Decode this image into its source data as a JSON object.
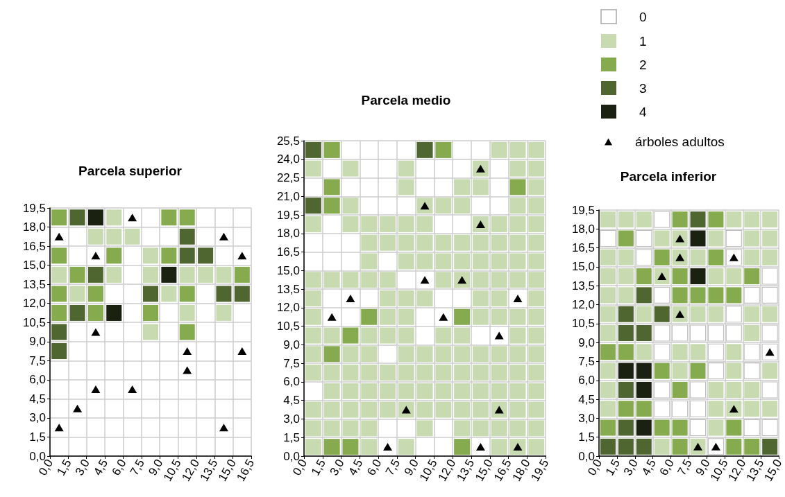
{
  "chart_data": [
    {
      "type": "scatter",
      "title": "Parcela superior",
      "xlim": [
        0,
        16.5
      ],
      "ylim": [
        0,
        19.5
      ],
      "grid": true,
      "marker": "square",
      "xticks": [
        {
          "value": 0,
          "label": "0,0"
        },
        {
          "value": 1.5,
          "label": "1,5"
        },
        {
          "value": 3,
          "label": "3,0"
        },
        {
          "value": 4.5,
          "label": "4,5"
        },
        {
          "value": 6,
          "label": "6,0"
        },
        {
          "value": 7.5,
          "label": "7,5"
        },
        {
          "value": 9,
          "label": "9,0"
        },
        {
          "value": 10.5,
          "label": "10,5"
        },
        {
          "value": 12,
          "label": "12,0"
        },
        {
          "value": 13.5,
          "label": "13,5"
        },
        {
          "value": 15,
          "label": "15,0"
        },
        {
          "value": 16.5,
          "label": "16,5"
        }
      ],
      "yticks": [
        {
          "value": 0,
          "label": "0,0"
        },
        {
          "value": 1.5,
          "label": "1,5"
        },
        {
          "value": 3,
          "label": "3,0"
        },
        {
          "value": 4.5,
          "label": "4,5"
        },
        {
          "value": 6,
          "label": "6,0"
        },
        {
          "value": 7.5,
          "label": "7,5"
        },
        {
          "value": 9,
          "label": "9,0"
        },
        {
          "value": 10.5,
          "label": "10,5"
        },
        {
          "value": 12,
          "label": "12,0"
        },
        {
          "value": 13.5,
          "label": "13,5"
        },
        {
          "value": 15,
          "label": "15,0"
        },
        {
          "value": 16.5,
          "label": "16,5"
        },
        {
          "value": 18,
          "label": "18,0"
        },
        {
          "value": 19.5,
          "label": "19,5"
        }
      ],
      "series": [
        {
          "color": "#c8dbb0",
          "x": [
            5.25,
            3.75,
            5.25,
            6.75,
            8.25,
            0.75,
            5.25,
            8.25,
            11.25,
            12.75,
            14.25,
            2.25,
            9.75,
            11.25,
            14.25,
            8.25
          ],
          "values": [
            18.75,
            17.25,
            17.25,
            17.25,
            15.75,
            14.25,
            14.25,
            14.25,
            14.25,
            14.25,
            14.25,
            12.75,
            12.75,
            11.25,
            11.25,
            9.75
          ]
        },
        {
          "color": "#86ab4f",
          "x": [
            0.75,
            9.75,
            11.25,
            0.75,
            5.25,
            9.75,
            2.25,
            15.75,
            0.75,
            3.75,
            11.25,
            0.75,
            3.75,
            8.25,
            11.25
          ],
          "values": [
            18.75,
            18.75,
            18.75,
            15.75,
            15.75,
            15.75,
            14.25,
            14.25,
            12.75,
            12.75,
            12.75,
            11.25,
            11.25,
            11.25,
            9.75
          ]
        },
        {
          "color": "#506630",
          "x": [
            2.25,
            11.25,
            11.25,
            12.75,
            3.75,
            8.25,
            14.25,
            15.75,
            2.25,
            0.75,
            0.75
          ],
          "values": [
            18.75,
            17.25,
            15.75,
            15.75,
            14.25,
            12.75,
            12.75,
            12.75,
            11.25,
            9.75,
            8.25
          ]
        },
        {
          "color": "#1a2110",
          "x": [
            3.75,
            9.75,
            5.25
          ],
          "values": [
            18.75,
            14.25,
            11.25
          ]
        },
        {
          "color": "#000000",
          "marker": "triangle",
          "x": [
            6.75,
            0.75,
            14.25,
            3.75,
            15.75,
            3.75,
            11.25,
            15.75,
            11.25,
            3.75,
            6.75,
            2.25,
            0.75,
            14.25
          ],
          "values": [
            18.75,
            17.25,
            17.25,
            15.75,
            15.75,
            9.75,
            8.25,
            8.25,
            6.75,
            5.25,
            5.25,
            3.75,
            2.25,
            2.25
          ]
        }
      ]
    },
    {
      "type": "scatter",
      "title": "Parcela medio",
      "xlim": [
        0,
        19.5
      ],
      "ylim": [
        0,
        25.5
      ],
      "grid": true,
      "marker": "square",
      "xticks": [
        {
          "value": 0,
          "label": "0,0"
        },
        {
          "value": 1.5,
          "label": "1,5"
        },
        {
          "value": 3,
          "label": "3,0"
        },
        {
          "value": 4.5,
          "label": "4,5"
        },
        {
          "value": 6,
          "label": "6,0"
        },
        {
          "value": 7.5,
          "label": "7,5"
        },
        {
          "value": 9,
          "label": "9,0"
        },
        {
          "value": 10.5,
          "label": "10,5"
        },
        {
          "value": 12,
          "label": "12,0"
        },
        {
          "value": 13.5,
          "label": "13,5"
        },
        {
          "value": 15,
          "label": "15,0"
        },
        {
          "value": 16.5,
          "label": "16,5"
        },
        {
          "value": 18,
          "label": "18,0"
        },
        {
          "value": 19.5,
          "label": "19,5"
        }
      ],
      "yticks": [
        {
          "value": 0,
          "label": "0,0"
        },
        {
          "value": 1.5,
          "label": "1,5"
        },
        {
          "value": 3,
          "label": "3,0"
        },
        {
          "value": 4.5,
          "label": "4,5"
        },
        {
          "value": 6,
          "label": "6,0"
        },
        {
          "value": 7.5,
          "label": "7,5"
        },
        {
          "value": 9,
          "label": "9,0"
        },
        {
          "value": 10.5,
          "label": "10,5"
        },
        {
          "value": 12,
          "label": "12,0"
        },
        {
          "value": 13.5,
          "label": "13,5"
        },
        {
          "value": 15,
          "label": "15,0"
        },
        {
          "value": 16.5,
          "label": "16,5"
        },
        {
          "value": 18,
          "label": "18,0"
        },
        {
          "value": 19.5,
          "label": "19,5"
        },
        {
          "value": 21,
          "label": "21,0"
        },
        {
          "value": 22.5,
          "label": "22,5"
        },
        {
          "value": 24,
          "label": "24,0"
        },
        {
          "value": 25.5,
          "label": "25,5"
        }
      ],
      "series": [
        {
          "color": "#c8dbb0",
          "x": [
            15.75,
            17.25,
            18.75,
            0.75,
            3.75,
            8.25,
            14.25,
            17.25,
            18.75,
            8.25,
            12.75,
            14.25,
            18.75,
            3.75,
            9.75,
            11.25,
            12.75,
            17.25,
            18.75,
            0.75,
            3.75,
            5.25,
            6.75,
            8.25,
            9.75,
            14.25,
            15.75,
            17.25,
            18.75,
            5.25,
            6.75,
            8.25,
            9.75,
            11.25,
            12.75,
            14.25,
            15.75,
            17.25,
            18.75,
            5.25,
            8.25,
            9.75,
            11.25,
            12.75,
            14.25,
            15.75,
            17.25,
            18.75,
            0.75,
            2.25,
            3.75,
            5.25,
            6.75,
            11.25,
            12.75,
            14.25,
            15.75,
            17.25,
            18.75,
            0.75,
            6.75,
            8.25,
            9.75,
            14.25,
            15.75,
            18.75,
            0.75,
            6.75,
            8.25,
            14.25,
            15.75,
            17.25,
            18.75,
            0.75,
            2.25,
            5.25,
            6.75,
            8.25,
            11.25,
            12.75,
            17.25,
            18.75,
            0.75,
            3.75,
            5.25,
            8.25,
            9.75,
            11.25,
            12.75,
            14.25,
            15.75,
            17.25,
            18.75,
            0.75,
            2.25,
            3.75,
            5.25,
            6.75,
            8.25,
            9.75,
            11.25,
            12.75,
            14.25,
            15.75,
            17.25,
            18.75,
            2.25,
            3.75,
            5.25,
            6.75,
            8.25,
            9.75,
            11.25,
            12.75,
            14.25,
            15.75,
            17.25,
            18.75,
            0.75,
            2.25,
            3.75,
            5.25,
            6.75,
            8.25,
            9.75,
            11.25,
            12.75,
            14.25,
            15.75,
            17.25,
            18.75,
            0.75,
            2.25,
            3.75,
            5.25,
            9.75,
            12.75,
            14.25,
            15.75,
            17.25,
            18.75,
            0.75,
            5.25,
            8.25,
            15.75,
            17.25,
            18.75
          ],
          "values": [
            24.75,
            24.75,
            24.75,
            23.25,
            23.25,
            23.25,
            23.25,
            23.25,
            23.25,
            21.75,
            21.75,
            21.75,
            21.75,
            20.25,
            20.25,
            20.25,
            20.25,
            20.25,
            20.25,
            18.75,
            18.75,
            18.75,
            18.75,
            18.75,
            18.75,
            18.75,
            18.75,
            18.75,
            18.75,
            17.25,
            17.25,
            17.25,
            17.25,
            17.25,
            17.25,
            17.25,
            17.25,
            17.25,
            17.25,
            15.75,
            15.75,
            15.75,
            15.75,
            15.75,
            15.75,
            15.75,
            15.75,
            15.75,
            14.25,
            14.25,
            14.25,
            14.25,
            14.25,
            14.25,
            14.25,
            14.25,
            14.25,
            14.25,
            14.25,
            12.75,
            12.75,
            12.75,
            12.75,
            12.75,
            12.75,
            12.75,
            11.25,
            11.25,
            11.25,
            11.25,
            11.25,
            11.25,
            11.25,
            9.75,
            9.75,
            9.75,
            9.75,
            9.75,
            9.75,
            9.75,
            9.75,
            9.75,
            8.25,
            8.25,
            8.25,
            8.25,
            8.25,
            8.25,
            8.25,
            8.25,
            8.25,
            8.25,
            8.25,
            6.75,
            6.75,
            6.75,
            6.75,
            6.75,
            6.75,
            6.75,
            6.75,
            6.75,
            6.75,
            6.75,
            6.75,
            6.75,
            5.25,
            5.25,
            5.25,
            5.25,
            5.25,
            5.25,
            5.25,
            5.25,
            5.25,
            5.25,
            5.25,
            5.25,
            3.75,
            3.75,
            3.75,
            3.75,
            3.75,
            3.75,
            3.75,
            3.75,
            3.75,
            3.75,
            3.75,
            3.75,
            3.75,
            2.25,
            2.25,
            2.25,
            2.25,
            2.25,
            2.25,
            2.25,
            2.25,
            2.25,
            2.25,
            0.75,
            0.75,
            0.75,
            0.75,
            0.75,
            0.75
          ]
        },
        {
          "color": "#86ab4f",
          "x": [
            2.25,
            11.25,
            2.25,
            17.25,
            2.25,
            5.25,
            12.75,
            3.75,
            2.25,
            2.25,
            3.75,
            12.75
          ],
          "values": [
            24.75,
            24.75,
            21.75,
            21.75,
            20.25,
            11.25,
            11.25,
            9.75,
            8.25,
            0.75,
            0.75,
            0.75
          ]
        },
        {
          "color": "#506630",
          "x": [
            0.75,
            9.75,
            0.75
          ],
          "values": [
            24.75,
            24.75,
            20.25
          ]
        },
        {
          "color": "#000000",
          "marker": "triangle",
          "x": [
            14.25,
            9.75,
            14.25,
            9.75,
            12.75,
            3.75,
            17.25,
            2.25,
            11.25,
            15.75,
            8.25,
            15.75,
            6.75,
            14.25,
            17.25
          ],
          "values": [
            23.25,
            20.25,
            18.75,
            14.25,
            14.25,
            12.75,
            12.75,
            11.25,
            11.25,
            9.75,
            3.75,
            3.75,
            0.75,
            0.75,
            0.75
          ]
        }
      ]
    },
    {
      "type": "scatter",
      "title": "Parcela inferior",
      "xlim": [
        0,
        15
      ],
      "ylim": [
        0,
        19.5
      ],
      "grid": true,
      "legend": "top left",
      "marker": "square",
      "xticks": [
        {
          "value": 0,
          "label": "0,0"
        },
        {
          "value": 1.5,
          "label": "1,5"
        },
        {
          "value": 3,
          "label": "3,0"
        },
        {
          "value": 4.5,
          "label": "4,5"
        },
        {
          "value": 6,
          "label": "6,0"
        },
        {
          "value": 7.5,
          "label": "7,5"
        },
        {
          "value": 9,
          "label": "9,0"
        },
        {
          "value": 10.5,
          "label": "10,5"
        },
        {
          "value": 12,
          "label": "12,0"
        },
        {
          "value": 13.5,
          "label": "13,5"
        },
        {
          "value": 15,
          "label": "15,0"
        }
      ],
      "yticks": [
        {
          "value": 0,
          "label": "0,0"
        },
        {
          "value": 1.5,
          "label": "1,5"
        },
        {
          "value": 3,
          "label": "3,0"
        },
        {
          "value": 4.5,
          "label": "4,5"
        },
        {
          "value": 6,
          "label": "6,0"
        },
        {
          "value": 7.5,
          "label": "7,5"
        },
        {
          "value": 9,
          "label": "9,0"
        },
        {
          "value": 10.5,
          "label": "10,5"
        },
        {
          "value": 12,
          "label": "12,0"
        },
        {
          "value": 13.5,
          "label": "13,5"
        },
        {
          "value": 15,
          "label": "15,0"
        },
        {
          "value": 16.5,
          "label": "16,5"
        },
        {
          "value": 18,
          "label": "18,0"
        },
        {
          "value": 19.5,
          "label": "19,5"
        }
      ],
      "series": [
        {
          "name": "0",
          "color": "#ffffff",
          "x": [
            5.25,
            0.75,
            3.75,
            11.25,
            3.75,
            11.25,
            14.25,
            5.25,
            12.75,
            14.25,
            11.25,
            5.25,
            6.75,
            8.25,
            9.75,
            11.25,
            14.25,
            5.25,
            9.75,
            12.75,
            14.25,
            9.75,
            12.75,
            5.25,
            8.25,
            14.25,
            5.25,
            6.75,
            8.25,
            8.25,
            12.75,
            14.25,
            9.75
          ],
          "values": [
            18.75,
            17.25,
            17.25,
            17.25,
            15.75,
            15.75,
            14.25,
            12.75,
            12.75,
            12.75,
            11.25,
            9.75,
            9.75,
            9.75,
            9.75,
            9.75,
            9.75,
            8.25,
            8.25,
            8.25,
            8.25,
            6.75,
            6.75,
            5.25,
            5.25,
            5.25,
            3.75,
            3.75,
            3.75,
            2.25,
            2.25,
            2.25,
            0.75
          ]
        },
        {
          "name": "1",
          "color": "#c8dbb0",
          "x": [
            0.75,
            2.25,
            3.75,
            11.25,
            12.75,
            14.25,
            5.25,
            6.75,
            9.75,
            12.75,
            14.25,
            0.75,
            2.25,
            6.75,
            8.25,
            12.75,
            14.25,
            0.75,
            2.25,
            5.25,
            9.75,
            11.25,
            0.75,
            2.25,
            0.75,
            3.75,
            6.75,
            8.25,
            9.75,
            12.75,
            14.25,
            0.75,
            12.75,
            3.75,
            6.75,
            8.25,
            11.25,
            0.75,
            6.75,
            11.25,
            14.25,
            0.75,
            9.75,
            11.25,
            12.75,
            0.75,
            9.75,
            11.25,
            12.75,
            14.25,
            9.75,
            5.25,
            8.25
          ],
          "values": [
            18.75,
            18.75,
            18.75,
            18.75,
            18.75,
            18.75,
            17.25,
            17.25,
            17.25,
            17.25,
            17.25,
            15.75,
            15.75,
            15.75,
            15.75,
            15.75,
            15.75,
            14.25,
            14.25,
            14.25,
            14.25,
            14.25,
            12.75,
            12.75,
            11.25,
            11.25,
            11.25,
            11.25,
            11.25,
            11.25,
            11.25,
            9.75,
            9.75,
            8.25,
            8.25,
            8.25,
            8.25,
            6.75,
            6.75,
            6.75,
            6.75,
            5.25,
            5.25,
            5.25,
            5.25,
            3.75,
            3.75,
            3.75,
            3.75,
            3.75,
            2.25,
            0.75,
            0.75
          ]
        },
        {
          "name": "2",
          "color": "#86ab4f",
          "x": [
            6.75,
            9.75,
            2.25,
            5.25,
            9.75,
            3.75,
            6.75,
            12.75,
            6.75,
            8.25,
            9.75,
            11.25,
            0.75,
            2.25,
            5.25,
            8.25,
            6.75,
            2.25,
            3.75,
            0.75,
            5.25,
            6.75,
            11.25,
            6.75,
            11.25,
            12.75
          ],
          "values": [
            18.75,
            18.75,
            17.25,
            15.75,
            15.75,
            14.25,
            14.25,
            14.25,
            12.75,
            12.75,
            12.75,
            12.75,
            8.25,
            8.25,
            6.75,
            6.75,
            5.25,
            3.75,
            3.75,
            2.25,
            2.25,
            2.25,
            2.25,
            0.75,
            0.75,
            0.75
          ]
        },
        {
          "name": "3",
          "color": "#506630",
          "x": [
            8.25,
            3.75,
            2.25,
            5.25,
            2.25,
            3.75,
            2.25,
            2.25,
            0.75,
            2.25,
            3.75,
            14.25
          ],
          "values": [
            18.75,
            12.75,
            11.25,
            11.25,
            9.75,
            9.75,
            5.25,
            2.25,
            0.75,
            0.75,
            0.75,
            0.75
          ]
        },
        {
          "name": "4",
          "color": "#1a2110",
          "x": [
            8.25,
            8.25,
            2.25,
            3.75,
            3.75,
            3.75
          ],
          "values": [
            17.25,
            14.25,
            6.75,
            6.75,
            5.25,
            2.25
          ]
        },
        {
          "name": "árboles adultos",
          "color": "#000000",
          "marker": "triangle",
          "x": [
            6.75,
            6.75,
            11.25,
            5.25,
            6.75,
            14.25,
            11.25,
            8.25,
            9.75
          ],
          "values": [
            17.25,
            15.75,
            15.75,
            14.25,
            11.25,
            8.25,
            3.75,
            0.75,
            0.75
          ]
        }
      ]
    }
  ]
}
